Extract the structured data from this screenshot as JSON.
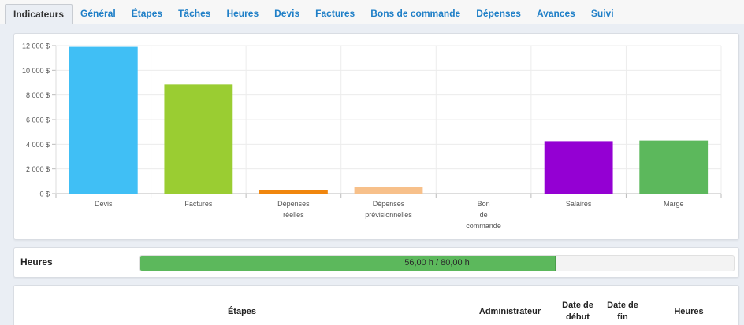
{
  "tabs": [
    {
      "label": "Indicateurs",
      "active": true
    },
    {
      "label": "Général"
    },
    {
      "label": "Étapes"
    },
    {
      "label": "Tâches"
    },
    {
      "label": "Heures"
    },
    {
      "label": "Devis"
    },
    {
      "label": "Factures"
    },
    {
      "label": "Bons de commande"
    },
    {
      "label": "Dépenses"
    },
    {
      "label": "Avances"
    },
    {
      "label": "Suivi"
    }
  ],
  "chart_data": {
    "type": "bar",
    "categories": [
      "Devis",
      "Factures",
      "Dépenses réelles",
      "Dépenses prévisionnelles",
      "Bon de commande",
      "Salaires",
      "Marge"
    ],
    "category_lines": [
      [
        "Devis"
      ],
      [
        "Factures"
      ],
      [
        "Dépenses",
        "réelles"
      ],
      [
        "Dépenses",
        "prévisionnelles"
      ],
      [
        "Bon",
        "de",
        "commande"
      ],
      [
        "Salaires"
      ],
      [
        "Marge"
      ]
    ],
    "values": [
      11900,
      8850,
      300,
      550,
      0,
      4250,
      4300
    ],
    "colors": [
      "#40bff5",
      "#9acd32",
      "#f0860e",
      "#f7c08a",
      "#cccccc",
      "#9400d3",
      "#5cb85c"
    ],
    "yticks": [
      0,
      2000,
      4000,
      6000,
      8000,
      10000,
      12000
    ],
    "ytick_labels": [
      "0 $",
      "2 000 $",
      "4 000 $",
      "6 000 $",
      "8 000 $",
      "10 000 $",
      "12 000 $"
    ],
    "ylim": [
      0,
      12000
    ],
    "grid": true,
    "legend": "none"
  },
  "hours": {
    "label": "Heures",
    "progress_text": "56,00 h / 80,00 h",
    "done": 56,
    "total": 80,
    "color": "#5cb85c"
  },
  "table": {
    "headers": [
      "Étapes",
      "Administrateur",
      "Date de début",
      "Date de fin",
      "Heures"
    ]
  }
}
